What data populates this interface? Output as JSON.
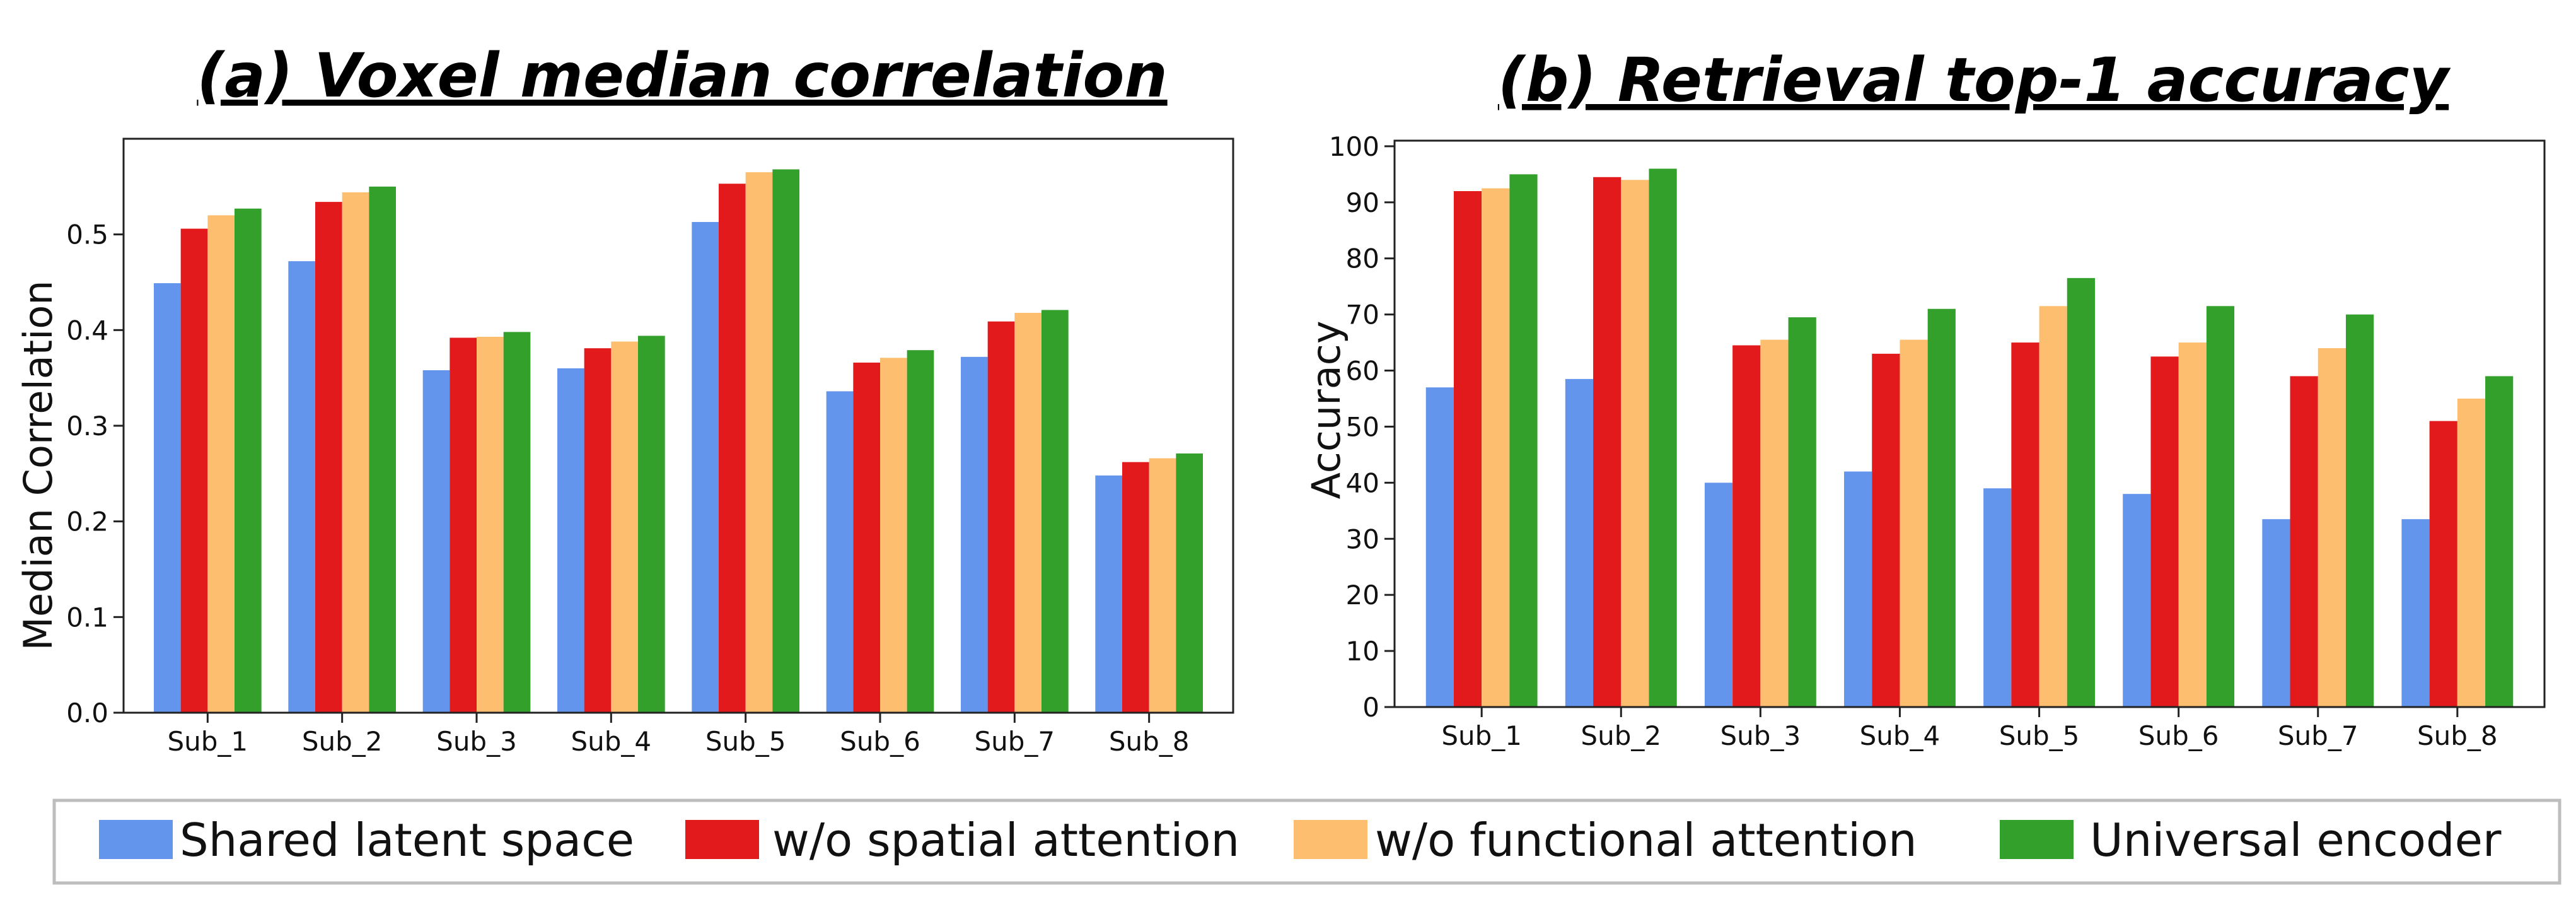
{
  "chart_data": [
    {
      "type": "bar",
      "title": "(a) Voxel median correlation",
      "xlabel": "",
      "ylabel": "Median Correlation",
      "ylim": [
        0,
        0.6
      ],
      "yticks": [
        0.0,
        0.1,
        0.2,
        0.3,
        0.4,
        0.5
      ],
      "ytick_labels": [
        "0.0",
        "0.1",
        "0.2",
        "0.3",
        "0.4",
        "0.5"
      ],
      "categories": [
        "Sub_1",
        "Sub_2",
        "Sub_3",
        "Sub_4",
        "Sub_5",
        "Sub_6",
        "Sub_7",
        "Sub_8"
      ],
      "series": [
        {
          "name": "Shared latent space",
          "values": [
            0.449,
            0.472,
            0.358,
            0.36,
            0.513,
            0.336,
            0.372,
            0.248
          ]
        },
        {
          "name": "w/o spatial attention",
          "values": [
            0.506,
            0.534,
            0.392,
            0.381,
            0.553,
            0.366,
            0.409,
            0.262
          ]
        },
        {
          "name": "w/o functional attention",
          "values": [
            0.52,
            0.544,
            0.393,
            0.388,
            0.565,
            0.371,
            0.418,
            0.266
          ]
        },
        {
          "name": "Universal encoder",
          "values": [
            0.527,
            0.55,
            0.398,
            0.394,
            0.568,
            0.379,
            0.421,
            0.271
          ]
        }
      ]
    },
    {
      "type": "bar",
      "title": "(b) Retrieval top-1 accuracy",
      "xlabel": "",
      "ylabel": "Accuracy",
      "ylim": [
        0,
        101
      ],
      "yticks": [
        0,
        10,
        20,
        30,
        40,
        50,
        60,
        70,
        80,
        90,
        100
      ],
      "ytick_labels": [
        "0",
        "10",
        "20",
        "30",
        "40",
        "50",
        "60",
        "70",
        "80",
        "90",
        "100"
      ],
      "categories": [
        "Sub_1",
        "Sub_2",
        "Sub_3",
        "Sub_4",
        "Sub_5",
        "Sub_6",
        "Sub_7",
        "Sub_8"
      ],
      "series": [
        {
          "name": "Shared latent space",
          "values": [
            57.0,
            58.5,
            40.0,
            42.0,
            39.0,
            38.0,
            33.5,
            33.5
          ]
        },
        {
          "name": "w/o spatial attention",
          "values": [
            92.0,
            94.5,
            64.5,
            63.0,
            65.0,
            62.5,
            59.0,
            51.0
          ]
        },
        {
          "name": "w/o functional attention",
          "values": [
            92.5,
            94.0,
            65.5,
            65.5,
            71.5,
            65.0,
            64.0,
            55.0
          ]
        },
        {
          "name": "Universal encoder",
          "values": [
            95.0,
            96.0,
            69.5,
            71.0,
            76.5,
            71.5,
            70.0,
            59.0
          ]
        }
      ]
    }
  ],
  "legend": {
    "items": [
      {
        "label": "Shared latent space",
        "color": "#6495ED"
      },
      {
        "label": "w/o spatial attention",
        "color": "#E31A1C"
      },
      {
        "label": "w/o functional attention",
        "color": "#FDBF6F"
      },
      {
        "label": "Universal encoder",
        "color": "#33A02C"
      }
    ]
  },
  "colors": [
    "#6495ED",
    "#E31A1C",
    "#FDBF6F",
    "#33A02C"
  ]
}
